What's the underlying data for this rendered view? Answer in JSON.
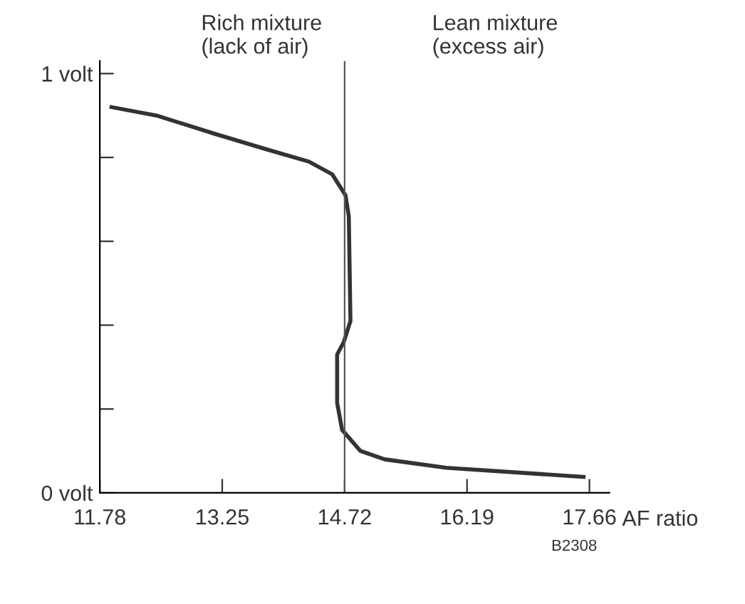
{
  "chart_data": {
    "type": "line",
    "xlabel": "AF ratio",
    "x": [
      11.92,
      12.46,
      13.15,
      13.77,
      14.29,
      14.57,
      14.73,
      14.77,
      14.79,
      14.71,
      14.63,
      14.63,
      14.69,
      14.91,
      15.2,
      15.94,
      17.59
    ],
    "series": [
      {
        "color": "#333333",
        "values": [
          0.92,
          0.9,
          0.857,
          0.82,
          0.79,
          0.76,
          0.71,
          0.66,
          0.41,
          0.36,
          0.33,
          0.215,
          0.15,
          0.1,
          0.08,
          0.06,
          0.038
        ]
      }
    ],
    "xlim": [
      11.78,
      17.9
    ],
    "ylim": [
      0,
      1.03
    ],
    "xticks": [
      11.78,
      13.25,
      14.72,
      16.19,
      17.66
    ],
    "yticks": [
      {
        "value": 0,
        "label": "0 volt"
      },
      {
        "value": 0.2,
        "label": null
      },
      {
        "value": 0.4,
        "label": null
      },
      {
        "value": 0.6,
        "label": null
      },
      {
        "value": 0.8,
        "label": null
      },
      {
        "value": 1,
        "label": "1 volt"
      }
    ],
    "ref_lines": [
      {
        "axis": "x",
        "value": 14.72,
        "color": "#555555"
      }
    ],
    "annotations": [
      "Rich mixture\n(lack of air)",
      "Lean mixture\n(excess air)",
      "B2308"
    ],
    "grid": false,
    "legend": false,
    "marker": "none",
    "line_style": "solid"
  }
}
